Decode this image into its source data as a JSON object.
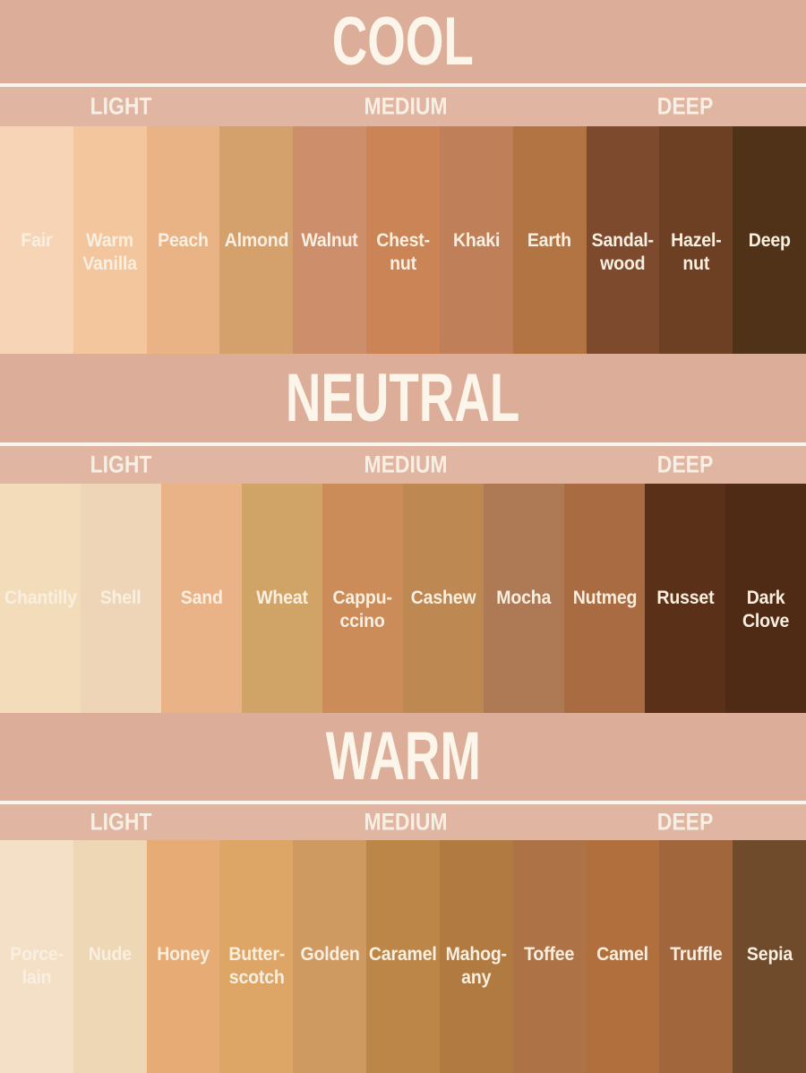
{
  "chart_data": {
    "type": "table",
    "title": "Foundation shade chart grouped by undertone (COOL / NEUTRAL / WARM) and depth (LIGHT / MEDIUM / DEEP)",
    "sections": [
      {
        "title": "COOL",
        "tones": [
          "LIGHT",
          "MEDIUM",
          "DEEP"
        ],
        "swatches": [
          {
            "name": "Fair",
            "color": "#f6d4b5"
          },
          {
            "name": "Warm\nVanilla",
            "color": "#f3c69e"
          },
          {
            "name": "Peach",
            "color": "#e9b385"
          },
          {
            "name": "Almond",
            "color": "#d4a06b"
          },
          {
            "name": "Walnut",
            "color": "#cd8f6b"
          },
          {
            "name": "Chest-\nnut",
            "color": "#ca8455"
          },
          {
            "name": "Khaki",
            "color": "#bf7f58"
          },
          {
            "name": "Earth",
            "color": "#b27442"
          },
          {
            "name": "Sandal-\nwood",
            "color": "#7e4a2e"
          },
          {
            "name": "Hazel-\nnut",
            "color": "#6d4023"
          },
          {
            "name": "Deep",
            "color": "#503219"
          }
        ]
      },
      {
        "title": "NEUTRAL",
        "tones": [
          "LIGHT",
          "MEDIUM",
          "DEEP"
        ],
        "swatches": [
          {
            "name": "Chantilly",
            "color": "#f3dcb9"
          },
          {
            "name": "Shell",
            "color": "#efd5b7"
          },
          {
            "name": "Sand",
            "color": "#eab287"
          },
          {
            "name": "Wheat",
            "color": "#d0a467"
          },
          {
            "name": "Cappu-\nccino",
            "color": "#cc8c5a"
          },
          {
            "name": "Cashew",
            "color": "#bd8852"
          },
          {
            "name": "Mocha",
            "color": "#ad7a55"
          },
          {
            "name": "Nutmeg",
            "color": "#a96b41"
          },
          {
            "name": "Russet",
            "color": "#5a3118"
          },
          {
            "name": "Dark\nClove",
            "color": "#4f2a14"
          }
        ]
      },
      {
        "title": "WARM",
        "tones": [
          "LIGHT",
          "MEDIUM",
          "DEEP"
        ],
        "swatches": [
          {
            "name": "Porce-\nlain",
            "color": "#f4e0c6"
          },
          {
            "name": "Nude",
            "color": "#eed7b4"
          },
          {
            "name": "Honey",
            "color": "#e7ab76"
          },
          {
            "name": "Butter-\nscotch",
            "color": "#dda667"
          },
          {
            "name": "Golden",
            "color": "#cf9a61"
          },
          {
            "name": "Caramel",
            "color": "#bc8648"
          },
          {
            "name": "Mahog-\nany",
            "color": "#b07a41"
          },
          {
            "name": "Toffee",
            "color": "#ad7347"
          },
          {
            "name": "Camel",
            "color": "#b26f3e"
          },
          {
            "name": "Truffle",
            "color": "#a2663d"
          },
          {
            "name": "Sepia",
            "color": "#6f4a2b"
          }
        ]
      }
    ]
  },
  "colors": {
    "header_bg": "#dcae9a",
    "subband_bg": "#e0b5a2",
    "divider": "#f8f4ee",
    "title_text": "#fcf5ea",
    "tone_text": "#f7efe3",
    "label_text": "#f9efe1"
  }
}
